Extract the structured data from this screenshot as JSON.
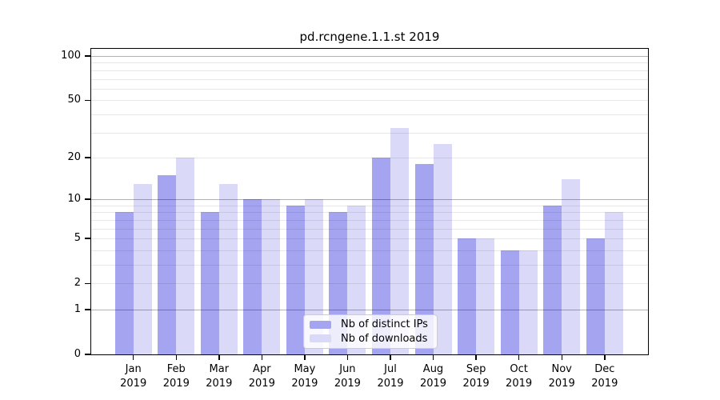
{
  "figure": {
    "title": "pd.rcngene.1.1.st 2019"
  },
  "chart_data": {
    "type": "bar",
    "title": "pd.rcngene.1.1.st 2019",
    "categories": [
      "Jan",
      "Feb",
      "Mar",
      "Apr",
      "May",
      "Jun",
      "Jul",
      "Aug",
      "Sep",
      "Oct",
      "Nov",
      "Dec"
    ],
    "category_year": "2019",
    "series": [
      {
        "name": "Nb of distinct IPs",
        "color": "#a4a4f1",
        "values": [
          8,
          15,
          8,
          10,
          9,
          8,
          20,
          18,
          5,
          4,
          9,
          5
        ]
      },
      {
        "name": "Nb of downloads",
        "color": "#dadaf8",
        "values": [
          13,
          20,
          13,
          10,
          10,
          9,
          32,
          25,
          5,
          4,
          14,
          8
        ]
      }
    ],
    "xlabel": "",
    "ylabel": "",
    "y_scale": "log10(1+v)",
    "ylim": [
      0,
      110
    ],
    "y_ticks": [
      0,
      1,
      2,
      5,
      10,
      20,
      50,
      100
    ],
    "y_tick_labels": [
      "0",
      "1",
      "2",
      "5",
      "10",
      "20",
      "50",
      "100"
    ],
    "y_grid_major": [
      1,
      10,
      100
    ],
    "y_grid_minor": [
      2,
      3,
      4,
      5,
      6,
      7,
      8,
      9,
      20,
      30,
      40,
      50,
      60,
      70,
      80,
      90
    ],
    "grid": true,
    "legend_position": "lower center"
  },
  "colors": {
    "background": "#ffffff",
    "axis": "#000000",
    "grid_major": "#b3b3b3",
    "grid_minor": "#e8e8e8",
    "series_dark": "#a4a4f1",
    "series_light": "#dadaf8"
  }
}
